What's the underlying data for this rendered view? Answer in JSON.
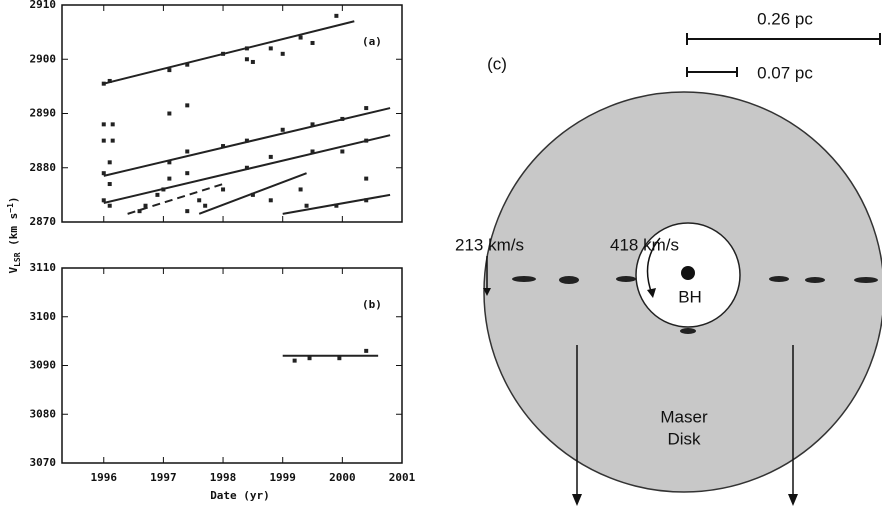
{
  "chart_data": [
    {
      "type": "scatter",
      "label": "(a)",
      "xlim": [
        1995.3,
        2001
      ],
      "xticks": [
        1996,
        1997,
        1998,
        1999,
        2000,
        2001
      ],
      "xtick_labels": false,
      "ylim": [
        2870,
        2910
      ],
      "yticks": [
        2870,
        2880,
        2890,
        2900,
        2910
      ],
      "color": "#222222",
      "points": {
        "x": [
          1996.0,
          1996.1,
          1997.1,
          1997.4,
          1998.0,
          1998.4,
          1998.4,
          1998.8,
          1999.0,
          1999.3,
          1999.5,
          1999.9,
          1996.0,
          1996.1,
          1997.1,
          1997.4,
          1998.0,
          1998.4,
          1999.0,
          1999.5,
          2000.0,
          2000.4,
          1996.0,
          1996.1,
          1997.1,
          1997.4,
          1998.4,
          1998.8,
          1999.5,
          2000.0,
          2000.4,
          1996.0,
          1996.0,
          1996.15,
          1996.15,
          1997.1,
          1997.4,
          1998.5,
          1996.1,
          1996.6,
          1996.7,
          1996.9,
          1997.0,
          1997.4,
          1997.6,
          1997.7,
          1998.0,
          1998.5,
          1998.8,
          1999.3,
          1999.4,
          1999.9,
          2000.4,
          2000.4
        ],
        "y": [
          2895.5,
          2896,
          2898,
          2899,
          2901,
          2900,
          2902,
          2902,
          2901,
          2904,
          2903,
          2908,
          2879,
          2881,
          2881,
          2883,
          2884,
          2885,
          2887,
          2888,
          2889,
          2891,
          2874,
          2877,
          2878,
          2879,
          2880,
          2882,
          2883,
          2883,
          2885,
          2888,
          2885,
          2888,
          2885,
          2890,
          2891.5,
          2899.5,
          2873,
          2872,
          2873,
          2875,
          2876,
          2872,
          2874,
          2873,
          2876,
          2875,
          2874,
          2876,
          2873,
          2873,
          2874,
          2878
        ]
      },
      "fits": [
        {
          "x": [
            1996,
            2000.2
          ],
          "y": [
            2895.5,
            2907
          ],
          "dash": false
        },
        {
          "x": [
            1996,
            2000.8
          ],
          "y": [
            2878.5,
            2891
          ],
          "dash": false
        },
        {
          "x": [
            1996,
            2000.8
          ],
          "y": [
            2873.5,
            2886
          ],
          "dash": false
        },
        {
          "x": [
            1996.4,
            1998.0
          ],
          "y": [
            2871.5,
            2877
          ],
          "dash": true
        },
        {
          "x": [
            1997.6,
            1999.4
          ],
          "y": [
            2871.5,
            2879
          ],
          "dash": false
        },
        {
          "x": [
            1999.0,
            2000.8
          ],
          "y": [
            2871.5,
            2875
          ],
          "dash": false
        }
      ]
    },
    {
      "type": "scatter",
      "label": "(b)",
      "xlim": [
        1995.3,
        2001
      ],
      "xticks": [
        1996,
        1997,
        1998,
        1999,
        2000,
        2001
      ],
      "xtick_labels": true,
      "ylim": [
        3070,
        3110
      ],
      "yticks": [
        3070,
        3080,
        3090,
        3100,
        3110
      ],
      "color": "#222222",
      "points": {
        "x": [
          1999.2,
          1999.45,
          1999.95,
          2000.4
        ],
        "y": [
          3091,
          3091.5,
          3091.5,
          3093
        ]
      },
      "fits": [
        {
          "x": [
            1999.0,
            2000.6
          ],
          "y": [
            3092,
            3092
          ],
          "dash": false
        }
      ]
    }
  ],
  "axes": {
    "x_label": "Date (yr)",
    "y_label": {
      "main": "V",
      "sub": "LSR",
      "unit": " (km s",
      "sup": "−1",
      "close": ")"
    }
  },
  "diagram": {
    "label": "(c)",
    "scale_large": "0.26 pc",
    "scale_small": "0.07 pc",
    "vel_outer": "213  km/s",
    "vel_inner": "418  km/s",
    "center": "BH",
    "disk_line1": "Maser",
    "disk_line2": "Disk"
  }
}
